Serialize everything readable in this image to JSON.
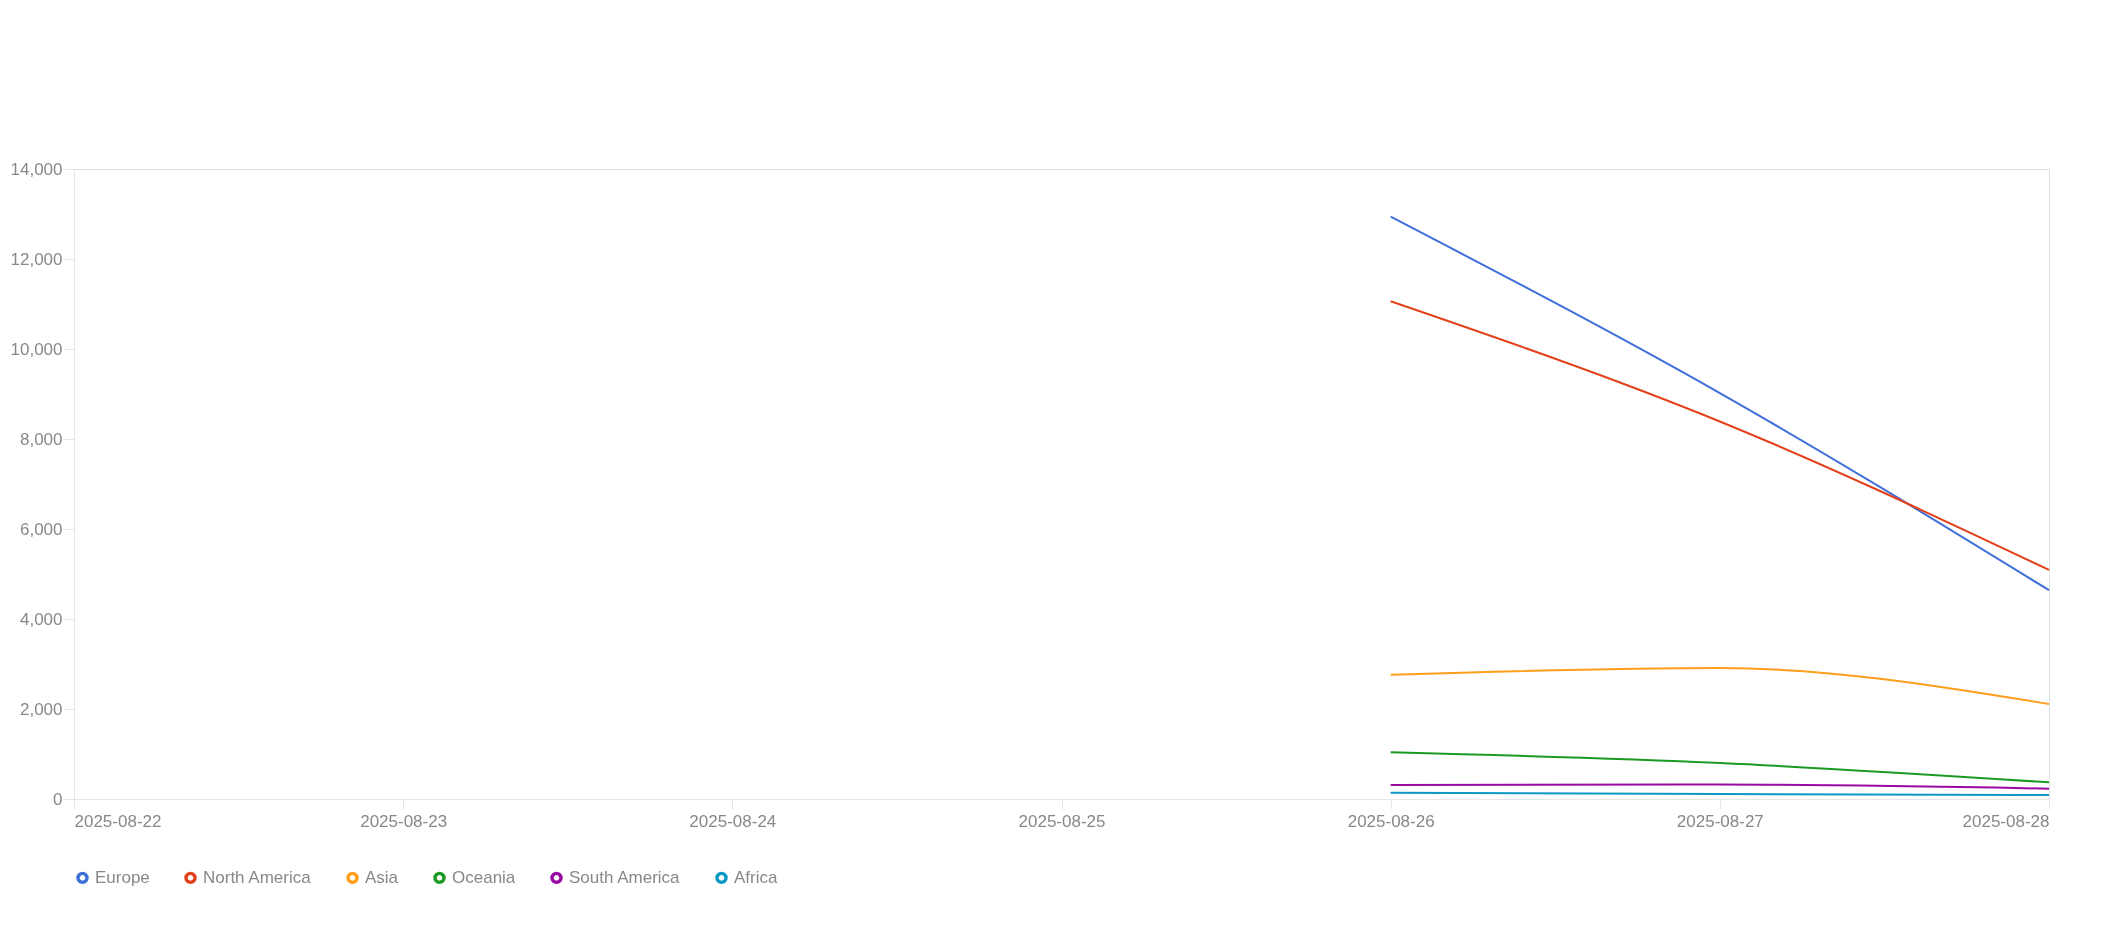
{
  "chart_data": {
    "type": "line",
    "x": [
      "2025-08-26",
      "2025-08-27",
      "2025-08-28"
    ],
    "series": [
      {
        "name": "Europe",
        "color": "#3f6fd8",
        "values": [
          12940,
          9020,
          4640
        ]
      },
      {
        "name": "North America",
        "color": "#e2411b",
        "values": [
          11060,
          8390,
          5090
        ]
      },
      {
        "name": "Asia",
        "color": "#ff9e1b",
        "values": [
          2760,
          2910,
          2110
        ]
      },
      {
        "name": "Oceania",
        "color": "#1a9a22",
        "values": [
          1040,
          800,
          370
        ]
      },
      {
        "name": "South America",
        "color": "#990aa3",
        "values": [
          310,
          320,
          230
        ]
      },
      {
        "name": "Africa",
        "color": "#0b98c4",
        "values": [
          140,
          110,
          90
        ]
      }
    ],
    "xlim": [
      "2025-08-22",
      "2025-08-28"
    ],
    "xticks": [
      "2025-08-22",
      "2025-08-23",
      "2025-08-24",
      "2025-08-25",
      "2025-08-26",
      "2025-08-27",
      "2025-08-28"
    ],
    "ylim": [
      0,
      14000
    ],
    "yticks": [
      0,
      {
        "value": 2000,
        "label": "2,000"
      },
      {
        "value": 4000,
        "label": "4,000"
      },
      {
        "value": 6000,
        "label": "6,000"
      },
      {
        "value": 8000,
        "label": "8,000"
      },
      {
        "value": 10000,
        "label": "10,000"
      },
      {
        "value": 12000,
        "label": "12,000"
      },
      {
        "value": 14000,
        "label": "14,000"
      }
    ],
    "grid": false,
    "legend": "bottom",
    "marker": "none",
    "line_style": "solid"
  }
}
